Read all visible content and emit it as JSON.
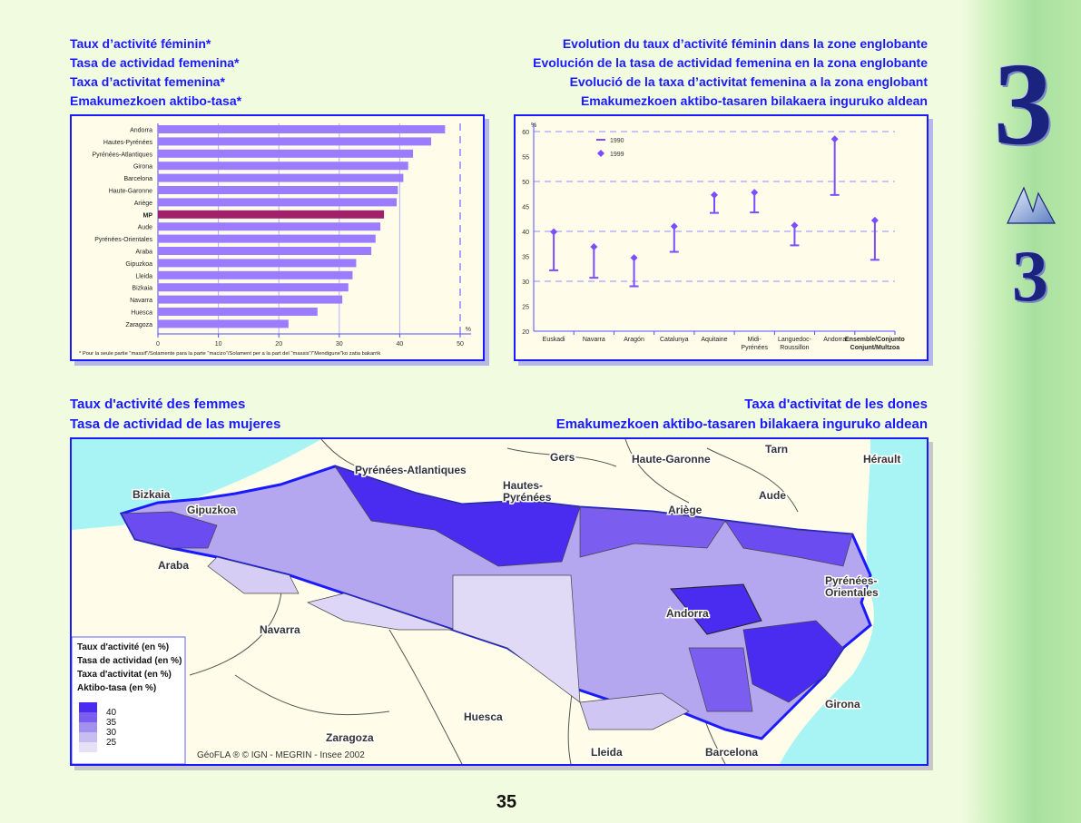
{
  "titles_left": [
    "Taux d’activité féminin*",
    "Tasa de actividad femenina*",
    "Taxa d’activitat femenina*",
    "Emakumezkoen aktibo-tasa*"
  ],
  "titles_right": [
    "Evolution du taux d’activité féminin dans la zone englobante",
    "Evolución de la tasa de actividad femenina en la zona englobante",
    "Evolució de la taxa d’activitat femenina a la zona englobant",
    "Emakumezkoen aktibo-tasaren bilakaera inguruko aldean"
  ],
  "map_titles_left": [
    "Taux d'activité des femmes",
    "Tasa de actividad de las mujeres"
  ],
  "map_titles_right": [
    "Taxa d'activitat de les dones",
    "Emakumezkoen aktibo-tasaren bilakaera inguruko aldean"
  ],
  "chapter": {
    "number": "3",
    "sub": "3"
  },
  "page_number": "35",
  "chart_data": [
    {
      "type": "bar",
      "orientation": "horizontal",
      "categories": [
        "Andorra",
        "Hautes-Pyrénées",
        "Pyrénées-Atlantiques",
        "Girona",
        "Barcelona",
        "Haute-Garonne",
        "Ariège",
        "MP",
        "Aude",
        "Pyrénées-Orientales",
        "Araba",
        "Gipuzkoa",
        "Lleida",
        "Bizkaia",
        "Navarra",
        "Huesca",
        "Zaragoza"
      ],
      "values": [
        47.5,
        45.2,
        42.2,
        41.4,
        40.6,
        39.7,
        39.5,
        37.4,
        36.8,
        36.0,
        35.3,
        32.8,
        32.2,
        31.5,
        30.5,
        26.4,
        21.6
      ],
      "highlight": "MP",
      "xlim": [
        0,
        50
      ],
      "xticks": [
        "0",
        "10",
        "20",
        "30",
        "40",
        "50"
      ],
      "xlabel": "%",
      "footnote": "* Pour la seule partie \"massif\"/Solamente para la parte \"macizo\"/Solament per a la part del \"massis\"/\"Mendigune\"ko zatia bakarrik",
      "colors": {
        "bar": "#9b7cff",
        "highlight": "#a0206a"
      }
    },
    {
      "type": "range",
      "categories": [
        "Euskadi",
        "Navarra",
        "Aragón",
        "Catalunya",
        "Aquitaine",
        "Midi-\nPyrénées",
        "Languedoc-\nRoussillon",
        "Andorra",
        "Ensemble/Conjunto\nConjunt/Multzoa"
      ],
      "series": [
        {
          "name": "1990",
          "values": [
            32.2,
            30.7,
            29.0,
            35.9,
            43.7,
            43.8,
            37.2,
            47.3,
            34.3
          ]
        },
        {
          "name": "1999",
          "values": [
            39.9,
            36.9,
            34.7,
            41.0,
            47.3,
            47.8,
            41.2,
            58.5,
            42.2
          ]
        }
      ],
      "ylim": [
        20,
        60
      ],
      "yticks": [
        "20",
        "25",
        "30",
        "35",
        "40",
        "45",
        "50",
        "55",
        "60"
      ],
      "ylabel": "%",
      "legend": "top-left",
      "color": "#7b4dff"
    }
  ],
  "map": {
    "labels": [
      "Pyrénées-Atlantiques",
      "Gers",
      "Haute-Garonne",
      "Tarn",
      "Hérault",
      "Bizkaia",
      "Gipuzkoa",
      "Hautes-\nPyrénées",
      "Aude",
      "Ariège",
      "Araba",
      "Pyrénées-\nOrientales",
      "Andorra",
      "Navarra",
      "Huesca",
      "Zaragoza",
      "Girona",
      "Lleida",
      "Barcelona"
    ],
    "credit": "GéoFLA ® © IGN - MEGRIN - Insee 2002",
    "legend": {
      "titles": [
        "Taux d'activité (en %)",
        "Tasa de actividad (en %)",
        "Taxa d'activitat (en %)",
        "Aktibo-tasa (en %)"
      ],
      "ticks": [
        "40",
        "35",
        "30",
        "25"
      ],
      "colors": [
        "#4a2cf0",
        "#7b5ef0",
        "#a290ee",
        "#c7bdf2",
        "#e6e1f7"
      ]
    }
  }
}
